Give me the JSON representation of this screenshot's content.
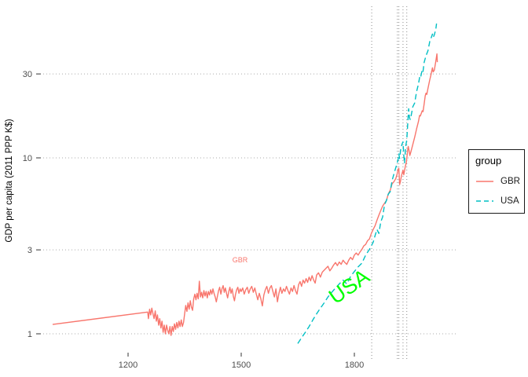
{
  "legend": {
    "title": "group",
    "items": [
      {
        "label": "GBR",
        "color": "#F8766D",
        "linetype": "solid"
      },
      {
        "label": "USA",
        "color": "#00BFC4",
        "linetype": "dashed"
      }
    ]
  },
  "chart_data": {
    "type": "line",
    "title": "",
    "xlabel": "",
    "ylabel": "GDP per capita (2011 PPP K$)",
    "y_scale": "log10",
    "xlim": [
      949,
      2070
    ],
    "ylim": [
      0.85,
      62
    ],
    "x_ticks": [
      1200,
      1500,
      1800
    ],
    "x_tick_labels": [
      "1200",
      "1500",
      "1800"
    ],
    "y_ticks": [
      1,
      3,
      10,
      30
    ],
    "y_tick_labels": [
      "1",
      "3",
      "10",
      "30"
    ],
    "grid": "dotted-horizontal-only",
    "grid_color": "#ababab",
    "legend_position": "right",
    "vertical_reference_years": [
      1846,
      1914,
      1918,
      1929,
      1939
    ],
    "vertical_reference_color": "#8c8c8c",
    "annotations": [
      {
        "text": "GBR",
        "x": 1497,
        "y": 2.55,
        "color": "#F8766D",
        "size": 9,
        "angle": 0
      },
      {
        "text": "USA",
        "x": 1797,
        "y": 1.72,
        "color": "#00FF00",
        "size": 27,
        "angle": -35
      }
    ],
    "series": [
      {
        "name": "GBR",
        "color": "#F8766D",
        "linetype": "solid",
        "width": 1.4,
        "points": [
          [
            1000,
            1.13
          ],
          [
            1252,
            1.33
          ],
          [
            1254,
            1.22
          ],
          [
            1257,
            1.38
          ],
          [
            1260,
            1.28
          ],
          [
            1263,
            1.4
          ],
          [
            1266,
            1.3
          ],
          [
            1269,
            1.22
          ],
          [
            1272,
            1.35
          ],
          [
            1275,
            1.18
          ],
          [
            1278,
            1.28
          ],
          [
            1281,
            1.12
          ],
          [
            1284,
            1.22
          ],
          [
            1287,
            1.08
          ],
          [
            1290,
            1.18
          ],
          [
            1293,
            1.02
          ],
          [
            1296,
            1.12
          ],
          [
            1299,
            1.0
          ],
          [
            1302,
            1.12
          ],
          [
            1305,
            1.05
          ],
          [
            1308,
            1.0
          ],
          [
            1311,
            1.1
          ],
          [
            1314,
            0.98
          ],
          [
            1317,
            1.1
          ],
          [
            1320,
            1.03
          ],
          [
            1323,
            1.14
          ],
          [
            1326,
            1.06
          ],
          [
            1329,
            1.16
          ],
          [
            1332,
            1.08
          ],
          [
            1335,
            1.18
          ],
          [
            1338,
            1.1
          ],
          [
            1341,
            1.2
          ],
          [
            1344,
            1.1
          ],
          [
            1347,
            1.16
          ],
          [
            1350,
            1.3
          ],
          [
            1353,
            1.45
          ],
          [
            1356,
            1.34
          ],
          [
            1359,
            1.5
          ],
          [
            1362,
            1.38
          ],
          [
            1365,
            1.54
          ],
          [
            1368,
            1.42
          ],
          [
            1371,
            1.36
          ],
          [
            1374,
            1.58
          ],
          [
            1377,
            1.68
          ],
          [
            1380,
            1.56
          ],
          [
            1383,
            1.7
          ],
          [
            1386,
            1.58
          ],
          [
            1389,
            1.99
          ],
          [
            1392,
            1.62
          ],
          [
            1395,
            1.72
          ],
          [
            1398,
            1.6
          ],
          [
            1401,
            1.76
          ],
          [
            1404,
            1.64
          ],
          [
            1407,
            1.74
          ],
          [
            1410,
            1.6
          ],
          [
            1413,
            1.74
          ],
          [
            1416,
            1.66
          ],
          [
            1419,
            1.78
          ],
          [
            1422,
            1.68
          ],
          [
            1425,
            1.8
          ],
          [
            1428,
            1.7
          ],
          [
            1431,
            1.62
          ],
          [
            1434,
            1.52
          ],
          [
            1437,
            1.64
          ],
          [
            1440,
            1.76
          ],
          [
            1443,
            1.84
          ],
          [
            1446,
            1.68
          ],
          [
            1449,
            1.8
          ],
          [
            1452,
            1.88
          ],
          [
            1455,
            1.72
          ],
          [
            1458,
            1.82
          ],
          [
            1461,
            1.7
          ],
          [
            1464,
            1.6
          ],
          [
            1467,
            1.74
          ],
          [
            1470,
            1.84
          ],
          [
            1473,
            1.7
          ],
          [
            1476,
            1.8
          ],
          [
            1479,
            1.64
          ],
          [
            1482,
            1.54
          ],
          [
            1485,
            1.68
          ],
          [
            1488,
            1.78
          ],
          [
            1491,
            1.84
          ],
          [
            1494,
            1.7
          ],
          [
            1497,
            1.8
          ],
          [
            1500,
            1.74
          ],
          [
            1504,
            1.82
          ],
          [
            1508,
            1.68
          ],
          [
            1512,
            1.78
          ],
          [
            1516,
            1.84
          ],
          [
            1520,
            1.7
          ],
          [
            1524,
            1.8
          ],
          [
            1528,
            1.86
          ],
          [
            1532,
            1.72
          ],
          [
            1536,
            1.82
          ],
          [
            1540,
            1.68
          ],
          [
            1544,
            1.56
          ],
          [
            1548,
            1.7
          ],
          [
            1552,
            1.58
          ],
          [
            1556,
            1.44
          ],
          [
            1560,
            1.66
          ],
          [
            1564,
            1.78
          ],
          [
            1568,
            1.86
          ],
          [
            1572,
            1.7
          ],
          [
            1576,
            1.82
          ],
          [
            1580,
            1.88
          ],
          [
            1584,
            1.74
          ],
          [
            1588,
            1.62
          ],
          [
            1592,
            1.8
          ],
          [
            1596,
            1.52
          ],
          [
            1600,
            1.7
          ],
          [
            1604,
            1.84
          ],
          [
            1608,
            1.7
          ],
          [
            1612,
            1.8
          ],
          [
            1616,
            1.74
          ],
          [
            1620,
            1.86
          ],
          [
            1624,
            1.76
          ],
          [
            1628,
            1.68
          ],
          [
            1632,
            1.82
          ],
          [
            1636,
            1.74
          ],
          [
            1640,
            1.88
          ],
          [
            1644,
            1.76
          ],
          [
            1648,
            1.68
          ],
          [
            1652,
            1.9
          ],
          [
            1656,
            1.98
          ],
          [
            1660,
            1.86
          ],
          [
            1664,
            2.02
          ],
          [
            1668,
            1.94
          ],
          [
            1672,
            2.06
          ],
          [
            1676,
            1.96
          ],
          [
            1680,
            2.1
          ],
          [
            1684,
            2.0
          ],
          [
            1688,
            2.14
          ],
          [
            1692,
            2.02
          ],
          [
            1696,
            1.94
          ],
          [
            1700,
            2.16
          ],
          [
            1705,
            2.22
          ],
          [
            1710,
            2.1
          ],
          [
            1715,
            2.24
          ],
          [
            1720,
            2.3
          ],
          [
            1725,
            2.36
          ],
          [
            1730,
            2.42
          ],
          [
            1735,
            2.28
          ],
          [
            1740,
            2.36
          ],
          [
            1745,
            2.46
          ],
          [
            1750,
            2.54
          ],
          [
            1755,
            2.44
          ],
          [
            1760,
            2.56
          ],
          [
            1765,
            2.48
          ],
          [
            1770,
            2.62
          ],
          [
            1775,
            2.54
          ],
          [
            1780,
            2.48
          ],
          [
            1785,
            2.62
          ],
          [
            1790,
            2.72
          ],
          [
            1795,
            2.64
          ],
          [
            1800,
            2.8
          ],
          [
            1805,
            2.88
          ],
          [
            1810,
            2.8
          ],
          [
            1815,
            2.92
          ],
          [
            1820,
            3.02
          ],
          [
            1825,
            3.16
          ],
          [
            1830,
            3.22
          ],
          [
            1835,
            3.38
          ],
          [
            1840,
            3.46
          ],
          [
            1845,
            3.72
          ],
          [
            1850,
            3.92
          ],
          [
            1855,
            4.12
          ],
          [
            1860,
            4.42
          ],
          [
            1865,
            4.72
          ],
          [
            1870,
            5.02
          ],
          [
            1875,
            5.32
          ],
          [
            1880,
            5.52
          ],
          [
            1885,
            5.72
          ],
          [
            1890,
            6.24
          ],
          [
            1895,
            6.54
          ],
          [
            1900,
            7.12
          ],
          [
            1905,
            7.32
          ],
          [
            1910,
            7.64
          ],
          [
            1913,
            8.02
          ],
          [
            1916,
            8.62
          ],
          [
            1918,
            8.72
          ],
          [
            1920,
            7.04
          ],
          [
            1922,
            7.34
          ],
          [
            1925,
            7.92
          ],
          [
            1929,
            8.52
          ],
          [
            1931,
            8.02
          ],
          [
            1935,
            8.92
          ],
          [
            1938,
            9.44
          ],
          [
            1941,
            10.92
          ],
          [
            1943,
            11.62
          ],
          [
            1945,
            11.02
          ],
          [
            1947,
            10.32
          ],
          [
            1950,
            10.84
          ],
          [
            1955,
            11.92
          ],
          [
            1960,
            13.12
          ],
          [
            1965,
            14.62
          ],
          [
            1970,
            16.12
          ],
          [
            1973,
            17.42
          ],
          [
            1975,
            17.32
          ],
          [
            1980,
            18.52
          ],
          [
            1982,
            18.32
          ],
          [
            1985,
            20.22
          ],
          [
            1988,
            22.52
          ],
          [
            1990,
            23.32
          ],
          [
            1992,
            22.92
          ],
          [
            1995,
            24.72
          ],
          [
            2000,
            27.82
          ],
          [
            2003,
            29.52
          ],
          [
            2007,
            32.52
          ],
          [
            2009,
            30.82
          ],
          [
            2012,
            31.52
          ],
          [
            2016,
            35.52
          ],
          [
            2019,
            39.02
          ],
          [
            2020,
            35.02
          ]
        ]
      },
      {
        "name": "USA",
        "color": "#00BFC4",
        "linetype": "dashed",
        "width": 1.4,
        "points": [
          [
            1650,
            0.88
          ],
          [
            1660,
            0.95
          ],
          [
            1670,
            1.02
          ],
          [
            1680,
            1.1
          ],
          [
            1690,
            1.2
          ],
          [
            1700,
            1.3
          ],
          [
            1710,
            1.4
          ],
          [
            1720,
            1.5
          ],
          [
            1730,
            1.62
          ],
          [
            1740,
            1.72
          ],
          [
            1750,
            1.82
          ],
          [
            1760,
            1.92
          ],
          [
            1770,
            2.02
          ],
          [
            1780,
            1.92
          ],
          [
            1790,
            2.12
          ],
          [
            1800,
            2.26
          ],
          [
            1810,
            2.4
          ],
          [
            1820,
            2.52
          ],
          [
            1830,
            2.8
          ],
          [
            1840,
            3.02
          ],
          [
            1850,
            3.32
          ],
          [
            1855,
            3.62
          ],
          [
            1860,
            3.92
          ],
          [
            1865,
            3.72
          ],
          [
            1870,
            4.32
          ],
          [
            1875,
            4.62
          ],
          [
            1880,
            5.42
          ],
          [
            1885,
            5.72
          ],
          [
            1890,
            6.22
          ],
          [
            1895,
            6.42
          ],
          [
            1900,
            7.42
          ],
          [
            1905,
            8.12
          ],
          [
            1910,
            8.82
          ],
          [
            1913,
            9.22
          ],
          [
            1916,
            9.82
          ],
          [
            1918,
            10.52
          ],
          [
            1920,
            9.92
          ],
          [
            1923,
            11.22
          ],
          [
            1926,
            11.92
          ],
          [
            1929,
            12.32
          ],
          [
            1931,
            10.32
          ],
          [
            1933,
            9.32
          ],
          [
            1936,
            11.62
          ],
          [
            1939,
            12.62
          ],
          [
            1941,
            15.02
          ],
          [
            1944,
            19.02
          ],
          [
            1946,
            17.02
          ],
          [
            1948,
            16.52
          ],
          [
            1950,
            17.12
          ],
          [
            1955,
            19.52
          ],
          [
            1960,
            20.52
          ],
          [
            1965,
            23.82
          ],
          [
            1970,
            26.32
          ],
          [
            1973,
            28.62
          ],
          [
            1975,
            28.22
          ],
          [
            1980,
            31.72
          ],
          [
            1982,
            31.02
          ],
          [
            1985,
            34.82
          ],
          [
            1990,
            38.12
          ],
          [
            1995,
            40.52
          ],
          [
            2000,
            45.92
          ],
          [
            2005,
            49.02
          ],
          [
            2007,
            50.52
          ],
          [
            2009,
            48.32
          ],
          [
            2012,
            50.02
          ],
          [
            2016,
            54.02
          ],
          [
            2018,
            58.02
          ]
        ]
      }
    ]
  }
}
